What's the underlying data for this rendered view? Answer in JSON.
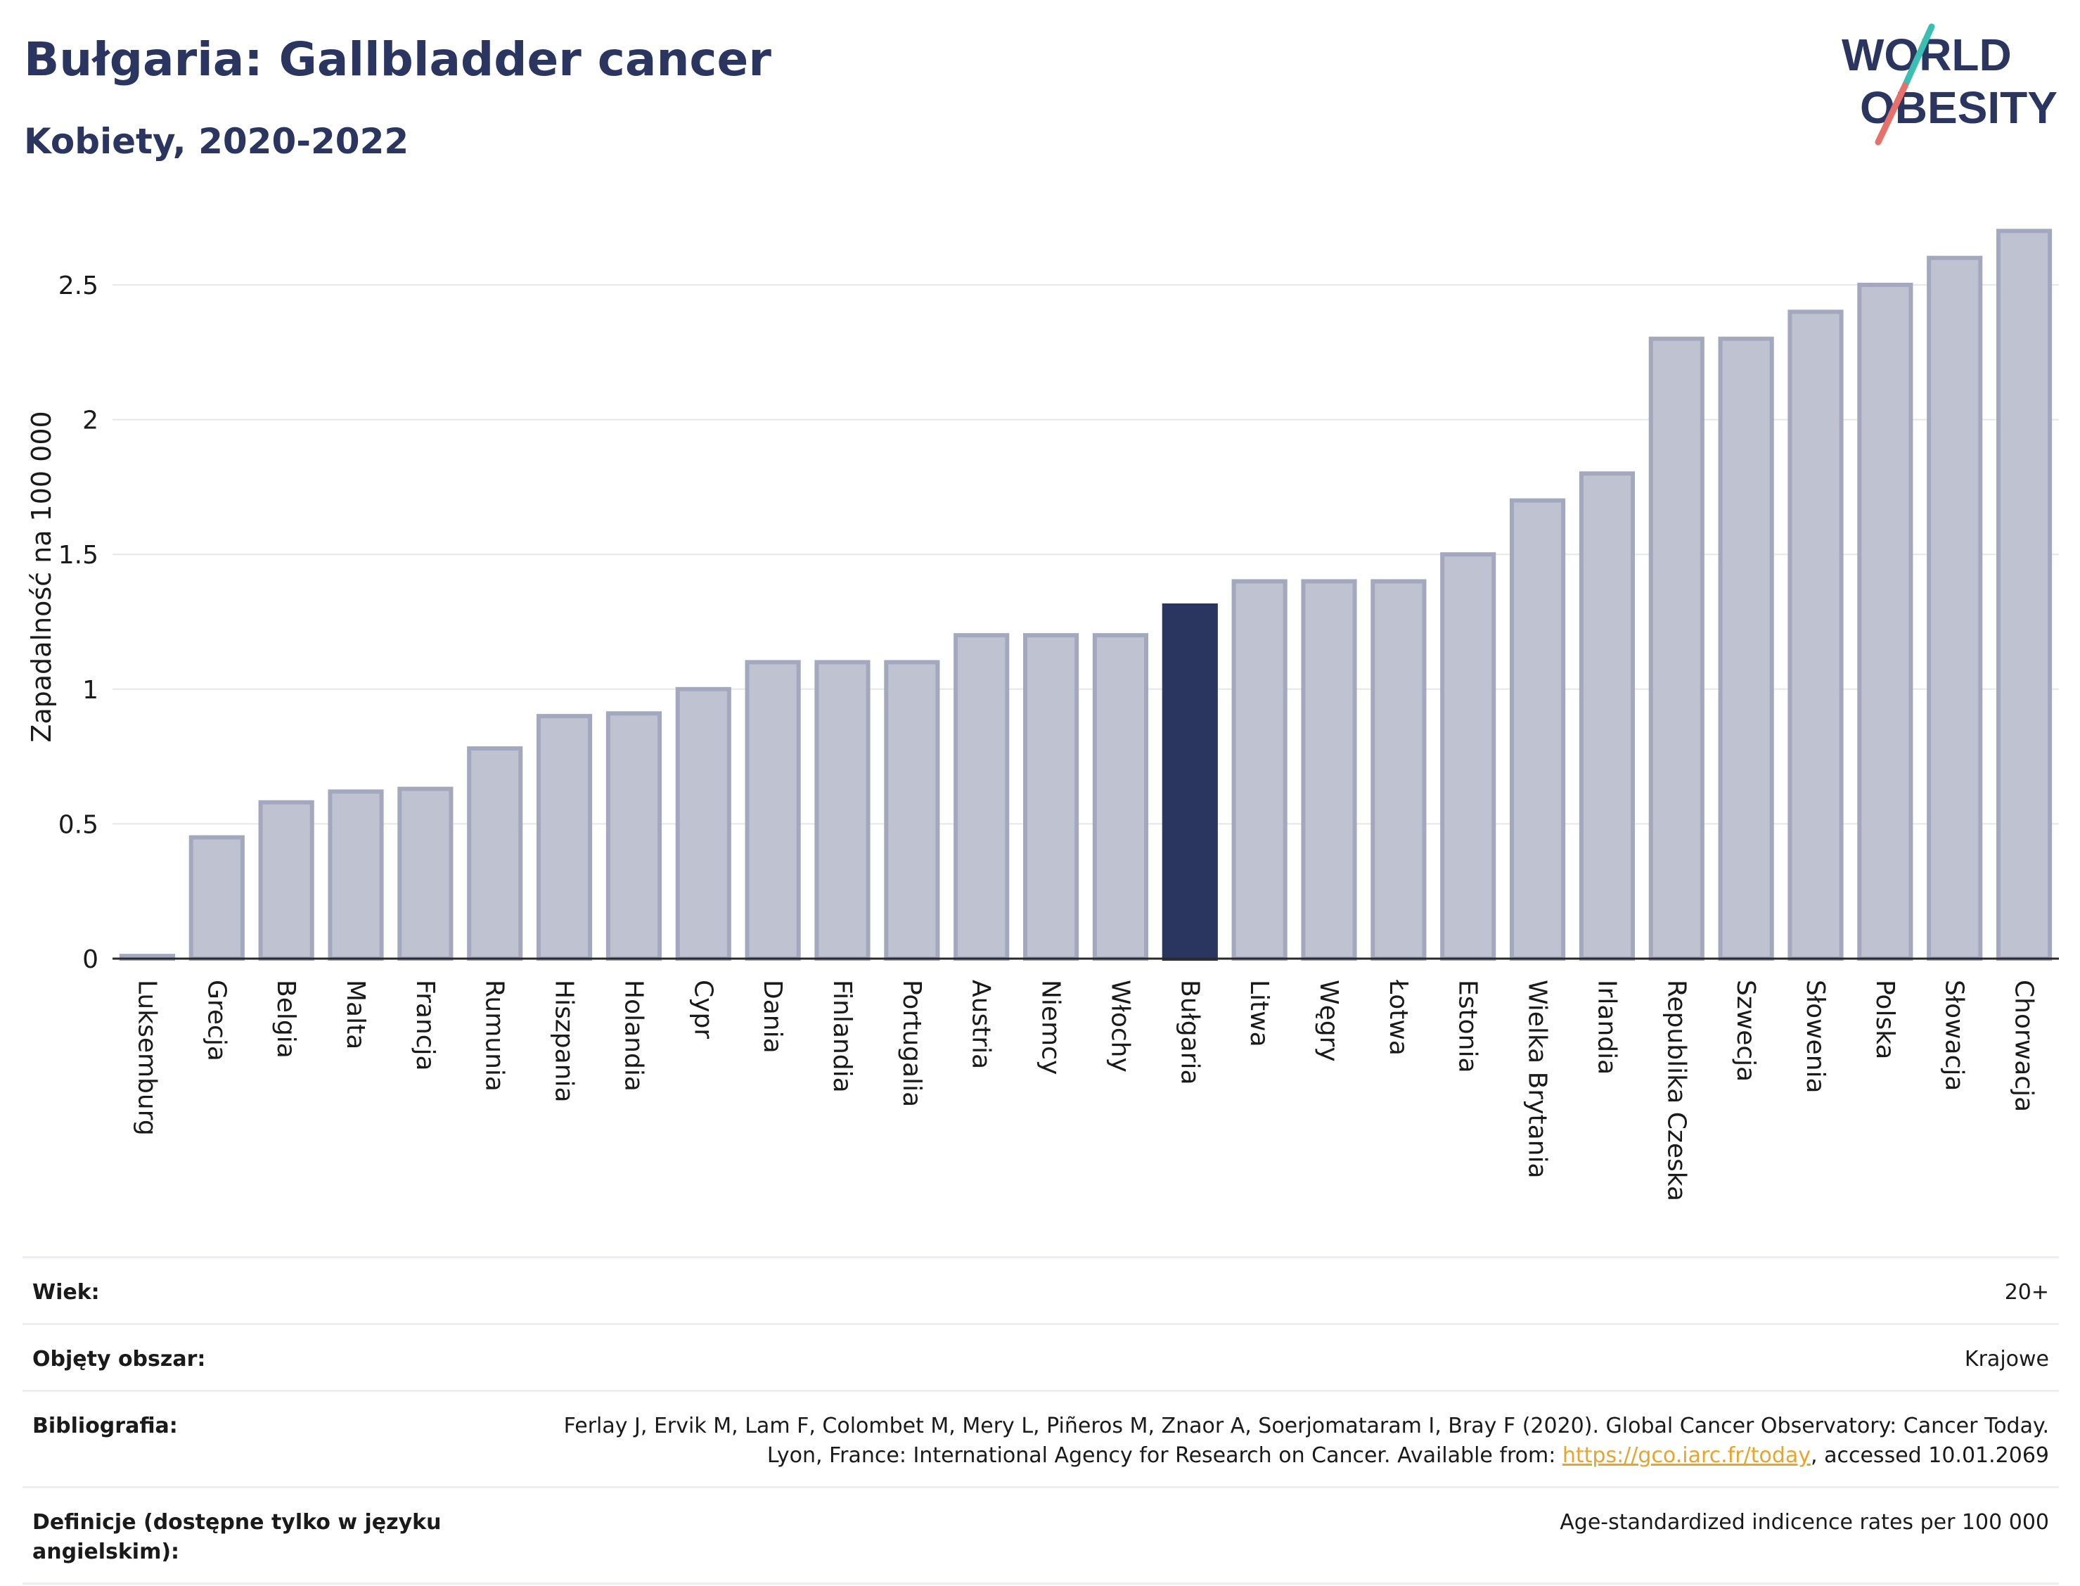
{
  "header": {
    "title": "Bułgaria: Gallbladder cancer",
    "subtitle": "Kobiety, 2020-2022"
  },
  "logo": {
    "line1": "WORLD",
    "line2": "OBESITY",
    "colors": {
      "text": "#2a3560",
      "slash_top": "#3bbfb3",
      "slash_bottom": "#e8706a"
    }
  },
  "colors": {
    "bar_fill": "#bfc2d0",
    "bar_stroke": "#a3a8bf",
    "highlight": "#2a3560",
    "grid": "#e6e7ec",
    "axis": "#2a2a2a"
  },
  "chart_data": {
    "type": "bar",
    "ylabel": "Zapadalność na 100 000",
    "ylim": [
      0,
      2.8
    ],
    "yticks": [
      0,
      0.5,
      1,
      1.5,
      2,
      2.5
    ],
    "ytick_labels": [
      "0",
      "0.5",
      "1",
      "1.5",
      "2",
      "2.5"
    ],
    "grid": true,
    "highlight_category": "Bułgaria",
    "categories": [
      "Luksemburg",
      "Grecja",
      "Belgia",
      "Malta",
      "Francja",
      "Rumunia",
      "Hiszpania",
      "Holandia",
      "Cypr",
      "Dania",
      "Finlandia",
      "Portugalia",
      "Austria",
      "Niemcy",
      "Włochy",
      "Bułgaria",
      "Litwa",
      "Węgry",
      "Łotwa",
      "Estonia",
      "Wielka Brytania",
      "Irlandia",
      "Republika Czeska",
      "Szwecja",
      "Słowenia",
      "Polska",
      "Słowacja",
      "Chorwacja"
    ],
    "values": [
      0.01,
      0.45,
      0.58,
      0.62,
      0.63,
      0.78,
      0.9,
      0.91,
      1.0,
      1.1,
      1.1,
      1.1,
      1.2,
      1.2,
      1.2,
      1.31,
      1.4,
      1.4,
      1.4,
      1.5,
      1.7,
      1.8,
      2.3,
      2.3,
      2.4,
      2.5,
      2.6,
      2.7
    ]
  },
  "meta": {
    "age_label": "Wiek:",
    "age_value": "20+",
    "coverage_label": "Objęty obszar:",
    "coverage_value": "Krajowe",
    "bibliography_label": "Bibliografia:",
    "bibliography_text_1": "Ferlay J, Ervik M, Lam F, Colombet M, Mery L, Piñeros M, Znaor A, Soerjomataram I, Bray F (2020). Global Cancer Observatory: Cancer Today. Lyon, France: International Agency for Research on Cancer. Available from: ",
    "bibliography_link": "https://gco.iarc.fr/today",
    "bibliography_text_2": ", accessed 10.01.2069",
    "definitions_label": "Definicje (dostępne tylko w języku angielskim):",
    "definitions_value": "Age-standardized indicence rates per 100 000"
  }
}
